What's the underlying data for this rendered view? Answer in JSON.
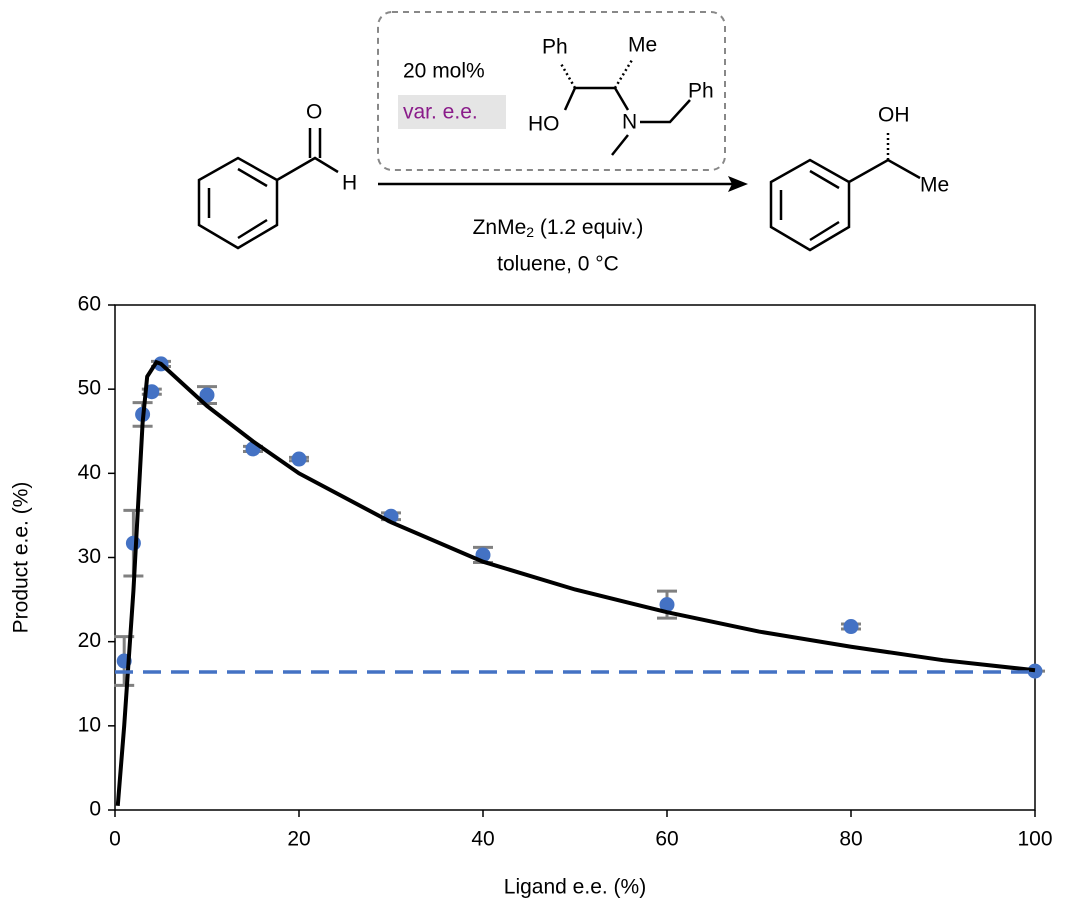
{
  "scheme": {
    "catalyst_amount": "20 mol%",
    "catalyst_ee": "var. e.e.",
    "ligand_labels": [
      "Ph",
      "Me",
      "Ph",
      "HO",
      "N"
    ],
    "substrate_labels": [
      "O",
      "H"
    ],
    "product_labels": [
      "OH",
      "Me"
    ],
    "reagent": [
      "ZnMe",
      "2",
      " (1.2 equiv.)"
    ],
    "conditions": "toluene, 0 °C"
  },
  "chart_data": {
    "type": "scatter",
    "xlabel": "Ligand e.e. (%)",
    "ylabel": "Product e.e. (%)",
    "xlim": [
      0,
      100
    ],
    "xticks": [
      0,
      20,
      40,
      60,
      80,
      100
    ],
    "ylim": [
      0,
      60
    ],
    "yticks": [
      0,
      10,
      20,
      30,
      40,
      50,
      60
    ],
    "series": [
      {
        "color": "#4472c4",
        "error_color": "#808080",
        "marker": true,
        "line_style": "none",
        "x": [
          1,
          2,
          3,
          4,
          5,
          10,
          15,
          20,
          30,
          40,
          60,
          80,
          100
        ],
        "values": [
          17.7,
          31.7,
          47,
          49.7,
          53,
          49.3,
          42.9,
          41.7,
          34.9,
          30.3,
          24.4,
          21.8,
          16.5
        ],
        "errors": [
          2.9,
          3.9,
          1.4,
          0.3,
          0.3,
          1,
          0.3,
          0.2,
          0.4,
          0.9,
          1.6,
          0.3,
          0
        ]
      },
      {
        "color": "#000000",
        "marker": false,
        "line_style": "solid",
        "x": [
          0.3,
          1,
          2,
          3,
          3.5,
          4.5,
          5,
          7,
          10,
          15,
          20,
          30,
          40,
          50,
          60,
          70,
          80,
          90,
          100
        ],
        "values": [
          0.5,
          10,
          26,
          46,
          51.5,
          53.2,
          53,
          51,
          48,
          43.8,
          40,
          34.2,
          29.5,
          26.2,
          23.5,
          21.2,
          19.4,
          17.8,
          16.6
        ]
      },
      {
        "color": "#4472c4",
        "marker": false,
        "line_style": "dashed",
        "x": [
          0,
          100
        ],
        "values": [
          16.4,
          16.4
        ]
      }
    ]
  }
}
